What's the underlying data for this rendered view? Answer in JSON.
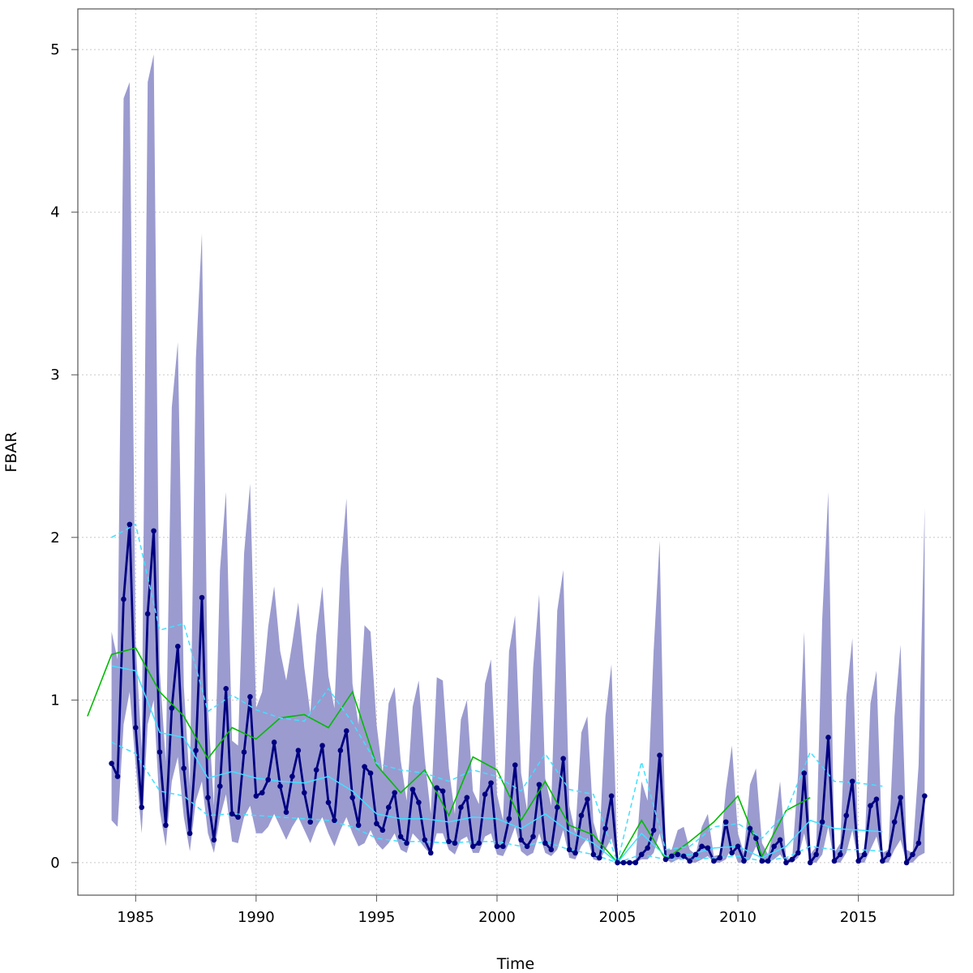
{
  "chart_data": {
    "type": "line",
    "title": "",
    "xlabel": "Time",
    "ylabel": "FBAR",
    "xlim": [
      1982.6,
      1819.0
    ],
    "ylim": [
      -0.2,
      5.25
    ],
    "xticks": [
      1985,
      1990,
      1995,
      2000,
      2005,
      2010,
      2015
    ],
    "yticks": [
      0,
      1,
      2,
      3,
      4,
      5
    ],
    "grid": true,
    "legend": "none",
    "colors": {
      "band": "#9b9bd0",
      "quarterly": "#000080",
      "annual": "#00bb00",
      "assessment": "#40e0ff"
    },
    "series": [
      {
        "role": "band",
        "x": [
          1984.0,
          1984.25,
          1984.5,
          1984.75,
          1985.0,
          1985.25,
          1985.5,
          1985.75,
          1986.0,
          1986.25,
          1986.5,
          1986.75,
          1987.0,
          1987.25,
          1987.5,
          1987.75,
          1988.0,
          1988.25,
          1988.5,
          1988.75,
          1989.0,
          1989.25,
          1989.5,
          1989.75,
          1990.0,
          1990.25,
          1990.5,
          1990.75,
          1991.0,
          1991.25,
          1991.5,
          1991.75,
          1992.0,
          1992.25,
          1992.5,
          1992.75,
          1993.0,
          1993.25,
          1993.5,
          1993.75,
          1994.0,
          1994.25,
          1994.5,
          1994.75,
          1995.0,
          1995.25,
          1995.5,
          1995.75,
          1996.0,
          1996.25,
          1996.5,
          1996.75,
          1997.0,
          1997.25,
          1997.5,
          1997.75,
          1998.0,
          1998.25,
          1998.5,
          1998.75,
          1999.0,
          1999.25,
          1999.5,
          1999.75,
          2000.0,
          2000.25,
          2000.5,
          2000.75,
          2001.0,
          2001.25,
          2001.5,
          2001.75,
          2002.0,
          2002.25,
          2002.5,
          2002.75,
          2003.0,
          2003.25,
          2003.5,
          2003.75,
          2004.0,
          2004.25,
          2004.5,
          2004.75,
          2005.0,
          2005.25,
          2005.5,
          2005.75,
          2006.0,
          2006.25,
          2006.5,
          2006.75,
          2007.0,
          2007.25,
          2007.5,
          2007.75,
          2008.0,
          2008.25,
          2008.5,
          2008.75,
          2009.0,
          2009.25,
          2009.5,
          2009.75,
          2010.0,
          2010.25,
          2010.5,
          2010.75,
          2011.0,
          2011.25,
          2011.5,
          2011.75,
          2012.0,
          2012.25,
          2012.5,
          2012.75,
          2013.0,
          2013.25,
          2013.5,
          2013.75,
          2014.0,
          2014.25,
          2014.5,
          2014.75,
          2015.0,
          2015.25,
          2015.5,
          2015.75,
          2016.0,
          2016.25,
          2016.5,
          2016.75,
          2017.0,
          2017.25,
          2017.5,
          2017.75
        ],
        "lower": [
          0.26,
          0.22,
          0.85,
          1.05,
          0.6,
          0.18,
          0.85,
          1.0,
          0.32,
          0.1,
          0.5,
          0.65,
          0.28,
          0.07,
          0.38,
          0.5,
          0.18,
          0.06,
          0.28,
          0.42,
          0.13,
          0.12,
          0.28,
          0.35,
          0.18,
          0.18,
          0.22,
          0.3,
          0.22,
          0.14,
          0.22,
          0.28,
          0.2,
          0.12,
          0.22,
          0.28,
          0.18,
          0.1,
          0.2,
          0.28,
          0.18,
          0.1,
          0.12,
          0.2,
          0.12,
          0.08,
          0.12,
          0.18,
          0.08,
          0.06,
          0.18,
          0.14,
          0.09,
          0.05,
          0.18,
          0.18,
          0.08,
          0.05,
          0.14,
          0.16,
          0.06,
          0.06,
          0.16,
          0.18,
          0.05,
          0.04,
          0.12,
          0.22,
          0.07,
          0.04,
          0.06,
          0.18,
          0.06,
          0.04,
          0.08,
          0.2,
          0.03,
          0.02,
          0.1,
          0.15,
          0.02,
          0.01,
          0.08,
          0.15,
          0.0,
          0.0,
          0.0,
          0.0,
          0.02,
          0.02,
          0.06,
          0.18,
          0.02,
          0.0,
          0.02,
          0.03,
          0.0,
          0.0,
          0.02,
          0.04,
          0.0,
          0.0,
          0.02,
          0.1,
          0.0,
          0.0,
          0.02,
          0.1,
          0.0,
          0.0,
          0.02,
          0.05,
          0.0,
          0.0,
          0.03,
          0.18,
          0.0,
          0.0,
          0.05,
          0.22,
          0.0,
          0.0,
          0.06,
          0.2,
          0.0,
          0.0,
          0.08,
          0.16,
          0.0,
          0.0,
          0.08,
          0.14,
          0.0,
          0.0,
          0.04,
          0.06
        ],
        "upper": [
          1.42,
          1.25,
          4.7,
          4.8,
          1.35,
          0.7,
          4.8,
          4.97,
          1.18,
          0.62,
          2.8,
          3.2,
          1.08,
          0.47,
          3.1,
          3.87,
          0.95,
          0.35,
          1.8,
          2.28,
          0.75,
          0.72,
          1.9,
          2.33,
          0.95,
          1.05,
          1.45,
          1.7,
          1.3,
          1.12,
          1.35,
          1.6,
          1.2,
          0.92,
          1.4,
          1.7,
          1.15,
          0.95,
          1.8,
          2.24,
          1.1,
          0.85,
          1.46,
          1.42,
          0.85,
          0.55,
          0.98,
          1.08,
          0.63,
          0.38,
          0.96,
          1.12,
          0.64,
          0.3,
          1.14,
          1.12,
          0.58,
          0.3,
          0.88,
          1.0,
          0.44,
          0.36,
          1.1,
          1.25,
          0.42,
          0.26,
          1.3,
          1.52,
          0.55,
          0.32,
          1.2,
          1.65,
          0.52,
          0.35,
          1.55,
          1.8,
          0.35,
          0.18,
          0.8,
          0.9,
          0.25,
          0.12,
          0.9,
          1.22,
          0.02,
          0.0,
          0.0,
          0.02,
          0.5,
          0.38,
          1.3,
          1.98,
          0.08,
          0.08,
          0.2,
          0.22,
          0.08,
          0.05,
          0.22,
          0.3,
          0.04,
          0.05,
          0.45,
          0.72,
          0.18,
          0.06,
          0.48,
          0.58,
          0.12,
          0.05,
          0.22,
          0.5,
          0.03,
          0.02,
          0.55,
          1.42,
          0.05,
          0.1,
          1.5,
          2.28,
          0.06,
          0.12,
          1.02,
          1.38,
          0.06,
          0.06,
          0.98,
          1.18,
          0.06,
          0.08,
          0.9,
          1.34,
          0.08,
          0.06,
          0.6,
          2.18
        ]
      },
      {
        "role": "quarterly",
        "x": [
          1984.0,
          1984.25,
          1984.5,
          1984.75,
          1985.0,
          1985.25,
          1985.5,
          1985.75,
          1986.0,
          1986.25,
          1986.5,
          1986.75,
          1987.0,
          1987.25,
          1987.5,
          1987.75,
          1988.0,
          1988.25,
          1988.5,
          1988.75,
          1989.0,
          1989.25,
          1989.5,
          1989.75,
          1990.0,
          1990.25,
          1990.5,
          1990.75,
          1991.0,
          1991.25,
          1991.5,
          1991.75,
          1992.0,
          1992.25,
          1992.5,
          1992.75,
          1993.0,
          1993.25,
          1993.5,
          1993.75,
          1994.0,
          1994.25,
          1994.5,
          1994.75,
          1995.0,
          1995.25,
          1995.5,
          1995.75,
          1996.0,
          1996.25,
          1996.5,
          1996.75,
          1997.0,
          1997.25,
          1997.5,
          1997.75,
          1998.0,
          1998.25,
          1998.5,
          1998.75,
          1999.0,
          1999.25,
          1999.5,
          1999.75,
          2000.0,
          2000.25,
          2000.5,
          2000.75,
          2001.0,
          2001.25,
          2001.5,
          2001.75,
          2002.0,
          2002.25,
          2002.5,
          2002.75,
          2003.0,
          2003.25,
          2003.5,
          2003.75,
          2004.0,
          2004.25,
          2004.5,
          2004.75,
          2005.0,
          2005.25,
          2005.5,
          2005.75,
          2006.0,
          2006.25,
          2006.5,
          2006.75,
          2007.0,
          2007.25,
          2007.5,
          2007.75,
          2008.0,
          2008.25,
          2008.5,
          2008.75,
          2009.0,
          2009.25,
          2009.5,
          2009.75,
          2010.0,
          2010.25,
          2010.5,
          2010.75,
          2011.0,
          2011.25,
          2011.5,
          2011.75,
          2012.0,
          2012.25,
          2012.5,
          2012.75,
          2013.0,
          2013.25,
          2013.5,
          2013.75,
          2014.0,
          2014.25,
          2014.5,
          2014.75,
          2015.0,
          2015.25,
          2015.5,
          2015.75,
          2016.0,
          2016.25,
          2016.5,
          2016.75,
          2017.0,
          2017.25,
          2017.5,
          2017.75
        ],
        "y": [
          0.61,
          0.53,
          1.62,
          2.08,
          0.83,
          0.34,
          1.53,
          2.04,
          0.68,
          0.23,
          0.95,
          1.33,
          0.58,
          0.18,
          0.69,
          1.63,
          0.4,
          0.14,
          0.47,
          1.07,
          0.3,
          0.28,
          0.68,
          1.02,
          0.41,
          0.43,
          0.51,
          0.74,
          0.47,
          0.31,
          0.53,
          0.69,
          0.43,
          0.25,
          0.57,
          0.72,
          0.37,
          0.26,
          0.69,
          0.81,
          0.4,
          0.23,
          0.59,
          0.55,
          0.24,
          0.2,
          0.34,
          0.43,
          0.16,
          0.12,
          0.45,
          0.37,
          0.14,
          0.06,
          0.46,
          0.44,
          0.13,
          0.12,
          0.34,
          0.4,
          0.1,
          0.12,
          0.42,
          0.49,
          0.1,
          0.1,
          0.27,
          0.6,
          0.14,
          0.1,
          0.16,
          0.48,
          0.12,
          0.08,
          0.34,
          0.64,
          0.08,
          0.06,
          0.29,
          0.39,
          0.05,
          0.03,
          0.21,
          0.41,
          0.0,
          0.0,
          0.0,
          0.0,
          0.05,
          0.09,
          0.2,
          0.66,
          0.02,
          0.04,
          0.05,
          0.04,
          0.01,
          0.05,
          0.1,
          0.09,
          0.01,
          0.03,
          0.25,
          0.06,
          0.1,
          0.01,
          0.21,
          0.15,
          0.01,
          0.01,
          0.1,
          0.14,
          0.0,
          0.02,
          0.06,
          0.55,
          0.0,
          0.05,
          0.25,
          0.77,
          0.01,
          0.05,
          0.29,
          0.5,
          0.01,
          0.05,
          0.35,
          0.39,
          0.01,
          0.05,
          0.25,
          0.4,
          0.0,
          0.05,
          0.12,
          0.41
        ]
      },
      {
        "role": "annual",
        "x": [
          1983,
          1984,
          1985,
          1986,
          1987,
          1988,
          1989,
          1990,
          1991,
          1992,
          1993,
          1994,
          1995,
          1996,
          1997,
          1998,
          1999,
          2000,
          2001,
          2002,
          2003,
          2004,
          2005,
          2006,
          2007,
          2008,
          2009,
          2010,
          2011,
          2012,
          2013
        ],
        "y": [
          0.9,
          1.28,
          1.32,
          1.05,
          0.9,
          0.64,
          0.83,
          0.76,
          0.89,
          0.91,
          0.83,
          1.05,
          0.6,
          0.43,
          0.57,
          0.29,
          0.65,
          0.57,
          0.26,
          0.5,
          0.23,
          0.17,
          0.0,
          0.26,
          0.02,
          0.13,
          0.25,
          0.41,
          0.04,
          0.32,
          0.4
        ]
      },
      {
        "role": "assessment",
        "style": "solid",
        "x": [
          1984,
          1985,
          1986,
          1987,
          1988,
          1989,
          1990,
          1991,
          1992,
          1993,
          1994,
          1995,
          1996,
          1997,
          1998,
          1999,
          2000,
          2001,
          2002,
          2003,
          2004,
          2005,
          2006,
          2007,
          2008,
          2009,
          2010,
          2011,
          2012,
          2013,
          2014,
          2015,
          2016
        ],
        "y": [
          1.21,
          1.18,
          0.8,
          0.77,
          0.52,
          0.56,
          0.52,
          0.5,
          0.49,
          0.53,
          0.44,
          0.3,
          0.27,
          0.27,
          0.25,
          0.28,
          0.27,
          0.21,
          0.3,
          0.19,
          0.12,
          0.0,
          0.18,
          0.04,
          0.05,
          0.09,
          0.1,
          0.03,
          0.1,
          0.26,
          0.21,
          0.2,
          0.19
        ]
      },
      {
        "role": "assessment",
        "style": "dashed",
        "x": [
          1984,
          1985,
          1986,
          1987,
          1988,
          1989,
          1990,
          1991,
          1992,
          1993,
          1994,
          1995,
          1996,
          1997,
          1998,
          1999,
          2000,
          2001,
          2002,
          2003,
          2004,
          2005,
          2006,
          2007,
          2008,
          2009,
          2010,
          2011,
          2012,
          2013,
          2014,
          2015,
          2016
        ],
        "y": [
          2.0,
          2.08,
          1.43,
          1.47,
          0.93,
          1.03,
          0.94,
          0.89,
          0.87,
          1.07,
          0.86,
          0.61,
          0.57,
          0.55,
          0.5,
          0.57,
          0.53,
          0.44,
          0.67,
          0.45,
          0.42,
          0.0,
          0.62,
          0.08,
          0.1,
          0.22,
          0.24,
          0.15,
          0.31,
          0.68,
          0.5,
          0.49,
          0.47
        ]
      },
      {
        "role": "assessment",
        "style": "dashed",
        "x": [
          1984,
          1985,
          1986,
          1987,
          1988,
          1989,
          1990,
          1991,
          1992,
          1993,
          1994,
          1995,
          1996,
          1997,
          1998,
          1999,
          2000,
          2001,
          2002,
          2003,
          2004,
          2005,
          2006,
          2007,
          2008,
          2009,
          2010,
          2011,
          2012,
          2013,
          2014,
          2015,
          2016
        ],
        "y": [
          0.74,
          0.67,
          0.44,
          0.41,
          0.29,
          0.3,
          0.29,
          0.28,
          0.27,
          0.26,
          0.22,
          0.15,
          0.13,
          0.13,
          0.12,
          0.13,
          0.13,
          0.1,
          0.13,
          0.08,
          0.05,
          0.0,
          0.05,
          0.02,
          0.02,
          0.03,
          0.04,
          0.01,
          0.03,
          0.1,
          0.08,
          0.08,
          0.07
        ]
      }
    ]
  }
}
